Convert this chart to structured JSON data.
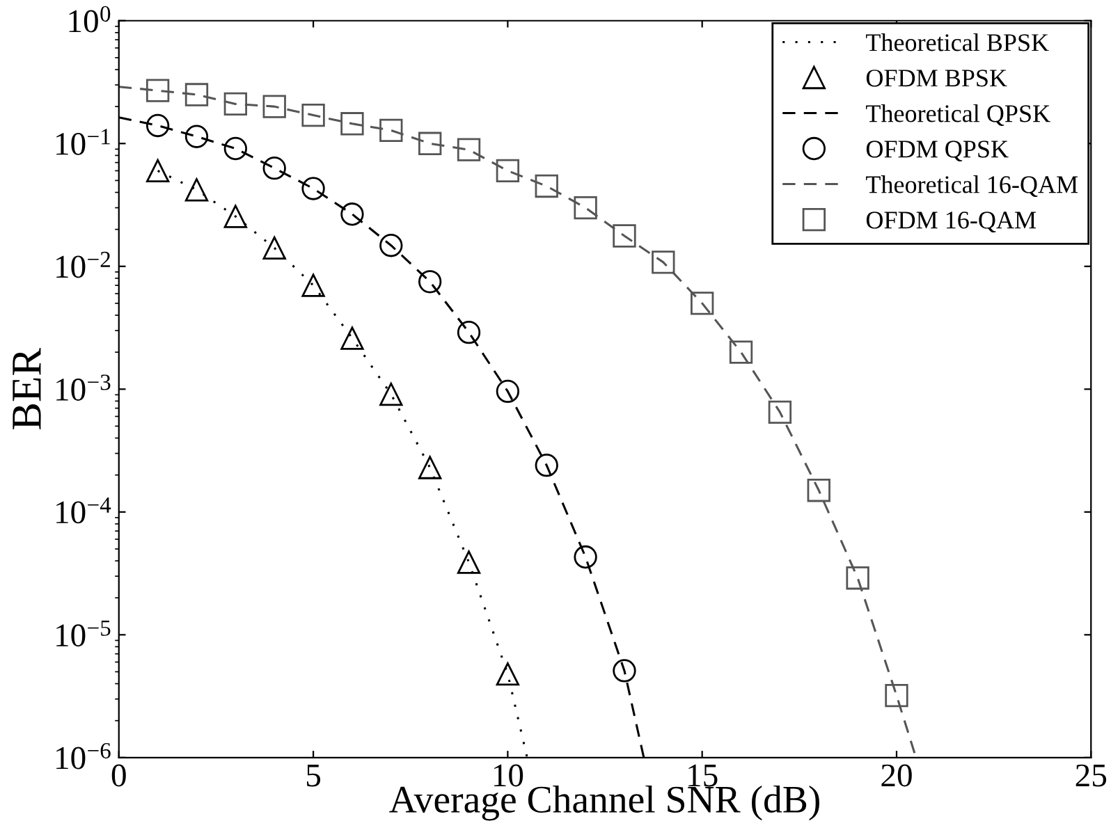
{
  "chart_data": {
    "type": "line",
    "xlabel": "Average Channel SNR (dB)",
    "ylabel": "BER",
    "xlim": [
      0,
      25
    ],
    "xticks": [
      0,
      5,
      10,
      15,
      20,
      25
    ],
    "ylim": [
      1e-06,
      1
    ],
    "log": "y",
    "yticks": [
      {
        "value": 1e-06,
        "label": "10$^{−6}$"
      },
      {
        "value": 1e-05,
        "label": "10$^{−5}$"
      },
      {
        "value": 0.0001,
        "label": "10$^{−4}$"
      },
      {
        "value": 0.001,
        "label": "10$^{−3}$"
      },
      {
        "value": 0.01,
        "label": "10$^{−2}$"
      },
      {
        "value": 0.1,
        "label": "10$^{−1}$"
      },
      {
        "value": 1,
        "label": "10$^{0}$"
      }
    ],
    "grid": false,
    "legend": "top right",
    "series": [
      {
        "name": "Theoretical BPSK",
        "line_style": "dotted",
        "marker": "none",
        "color": "#000000",
        "x": [
          1,
          2,
          3,
          4,
          5,
          6,
          7,
          8,
          9,
          10,
          10.5
        ],
        "values": [
          0.06,
          0.042,
          0.0255,
          0.0141,
          0.007,
          0.0026,
          0.00091,
          0.00023,
          3.9e-05,
          4.8e-06,
          1e-06
        ]
      },
      {
        "name": "OFDM BPSK",
        "type": "scatter",
        "marker": "triangle",
        "color": "#000000",
        "x": [
          1,
          2,
          3,
          4,
          5,
          6,
          7,
          8,
          9,
          10
        ],
        "values": [
          0.06,
          0.042,
          0.0255,
          0.0141,
          0.007,
          0.0026,
          0.00091,
          0.00023,
          3.9e-05,
          4.8e-06
        ]
      },
      {
        "name": "Theoretical QPSK",
        "line_style": "dashed",
        "marker": "none",
        "color": "#000000",
        "x": [
          0,
          1,
          2,
          3,
          4,
          5,
          6,
          7,
          8,
          9,
          10,
          11,
          12,
          13,
          13.5
        ],
        "values": [
          0.163,
          0.14,
          0.114,
          0.091,
          0.063,
          0.043,
          0.0266,
          0.0148,
          0.0075,
          0.0029,
          0.00096,
          0.00024,
          4.3e-05,
          5.1e-06,
          1e-06
        ]
      },
      {
        "name": "OFDM QPSK",
        "type": "scatter",
        "marker": "circle",
        "color": "#000000",
        "x": [
          1,
          2,
          3,
          4,
          5,
          6,
          7,
          8,
          9,
          10,
          11,
          12,
          13
        ],
        "values": [
          0.14,
          0.114,
          0.091,
          0.063,
          0.043,
          0.0266,
          0.0148,
          0.0075,
          0.0029,
          0.00096,
          0.00024,
          4.3e-05,
          5.1e-06
        ]
      },
      {
        "name": "Theoretical 16-QAM",
        "line_style": "dashed",
        "marker": "none",
        "color": "#555555",
        "x": [
          0,
          1,
          2,
          3,
          4,
          5,
          6,
          7,
          8,
          9,
          10,
          11,
          12,
          13,
          14,
          15,
          16,
          17,
          18,
          19,
          20,
          20.5
        ],
        "values": [
          0.29,
          0.27,
          0.25,
          0.21,
          0.2,
          0.17,
          0.145,
          0.128,
          0.1,
          0.089,
          0.06,
          0.045,
          0.03,
          0.0177,
          0.0108,
          0.005,
          0.002,
          0.00065,
          0.00015,
          2.9e-05,
          3.2e-06,
          1e-06
        ]
      },
      {
        "name": "OFDM 16-QAM",
        "type": "scatter",
        "marker": "square",
        "color": "#555555",
        "x": [
          1,
          2,
          3,
          4,
          5,
          6,
          7,
          8,
          9,
          10,
          11,
          12,
          13,
          14,
          15,
          16,
          17,
          18,
          19,
          20
        ],
        "values": [
          0.27,
          0.25,
          0.21,
          0.2,
          0.17,
          0.145,
          0.128,
          0.1,
          0.089,
          0.06,
          0.045,
          0.03,
          0.0177,
          0.0108,
          0.005,
          0.002,
          0.00065,
          0.00015,
          2.9e-05,
          3.2e-06
        ]
      }
    ]
  }
}
